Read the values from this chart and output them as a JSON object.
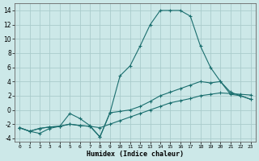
{
  "xlabel": "Humidex (Indice chaleur)",
  "ylabel": "",
  "background_color": "#cce8e8",
  "grid_color": "#aacccc",
  "line_color": "#1a6e6e",
  "xlim": [
    -0.5,
    23.5
  ],
  "ylim": [
    -4.5,
    15.0
  ],
  "xticks": [
    0,
    1,
    2,
    3,
    4,
    5,
    6,
    7,
    8,
    9,
    10,
    11,
    12,
    13,
    14,
    15,
    16,
    17,
    18,
    19,
    20,
    21,
    22,
    23
  ],
  "yticks": [
    -4,
    -2,
    0,
    2,
    4,
    6,
    8,
    10,
    12,
    14
  ],
  "series": [
    {
      "x": [
        0,
        1,
        2,
        3,
        4,
        5,
        6,
        7,
        8,
        9,
        10,
        11,
        12,
        13,
        14,
        15,
        16,
        17,
        18,
        19,
        20,
        21,
        22,
        23
      ],
      "y": [
        -2.5,
        -3.0,
        -3.3,
        -2.6,
        -2.3,
        -2.0,
        -2.2,
        -2.3,
        -3.8,
        -0.4,
        4.8,
        6.2,
        9.0,
        12.0,
        14.0,
        14.0,
        14.0,
        13.2,
        9.0,
        6.0,
        4.0,
        2.5,
        2.0,
        1.5
      ]
    },
    {
      "x": [
        0,
        1,
        2,
        3,
        4,
        5,
        6,
        7,
        8,
        9,
        10,
        11,
        12,
        13,
        14,
        15,
        16,
        17,
        18,
        19,
        20,
        21,
        22,
        23
      ],
      "y": [
        -2.5,
        -3.0,
        -2.6,
        -2.4,
        -2.3,
        -0.5,
        -1.2,
        -2.2,
        -3.8,
        -0.4,
        -0.2,
        0.0,
        0.5,
        1.2,
        2.0,
        2.5,
        3.0,
        3.5,
        4.0,
        3.8,
        4.0,
        2.2,
        2.0,
        1.5
      ]
    },
    {
      "x": [
        0,
        1,
        2,
        3,
        4,
        5,
        6,
        7,
        8,
        9,
        10,
        11,
        12,
        13,
        14,
        15,
        16,
        17,
        18,
        19,
        20,
        21,
        22,
        23
      ],
      "y": [
        -2.5,
        -3.0,
        -2.6,
        -2.4,
        -2.3,
        -2.0,
        -2.2,
        -2.3,
        -2.5,
        -2.0,
        -1.5,
        -1.0,
        -0.5,
        0.0,
        0.5,
        1.0,
        1.3,
        1.6,
        2.0,
        2.2,
        2.4,
        2.3,
        2.2,
        2.1
      ]
    }
  ]
}
